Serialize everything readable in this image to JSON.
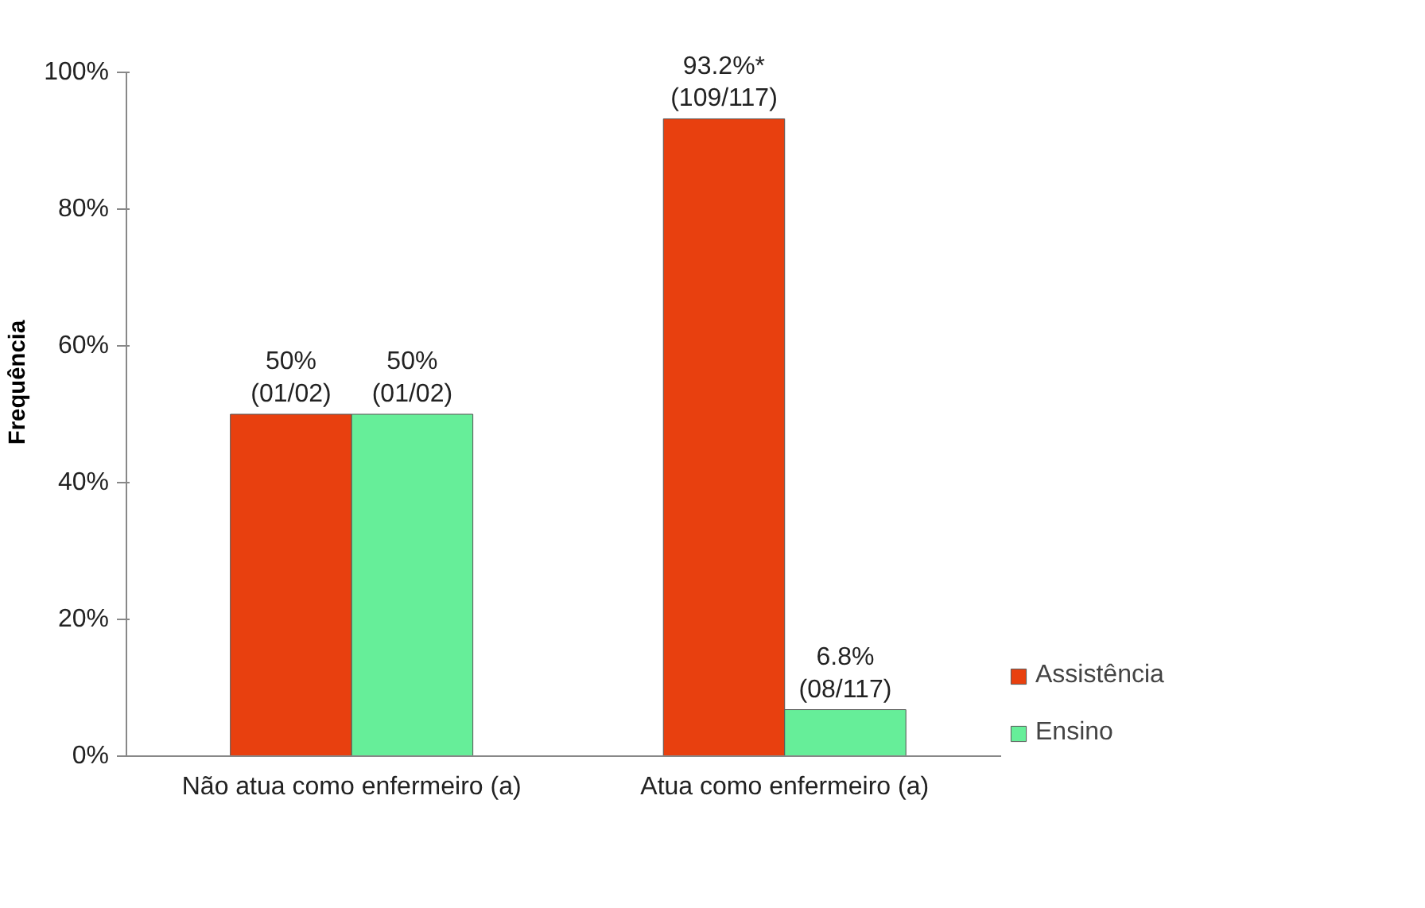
{
  "chart_data": {
    "type": "bar",
    "ylabel": "Frequência",
    "categories": [
      "Não atua como enfermeiro (a)",
      "Atua como enfermeiro (a)"
    ],
    "series": [
      {
        "name": "Assistência",
        "color": "#e8400f",
        "values": [
          50,
          93.2
        ],
        "value_labels": [
          "50%\n(01/02)",
          "93.2%*\n(109/117)"
        ]
      },
      {
        "name": "Ensino",
        "color": "#66ee99",
        "values": [
          50,
          6.8
        ],
        "value_labels": [
          "50%\n(01/02)",
          "6.8%\n(08/117)"
        ]
      }
    ],
    "ylim": [
      0,
      100
    ],
    "yticks": [
      {
        "value": 0,
        "label": "0%"
      },
      {
        "value": 20,
        "label": "20%"
      },
      {
        "value": 40,
        "label": "40%"
      },
      {
        "value": 60,
        "label": "60%"
      },
      {
        "value": 80,
        "label": "80%"
      },
      {
        "value": 100,
        "label": "100%"
      }
    ],
    "grid": false,
    "legend": "right"
  }
}
